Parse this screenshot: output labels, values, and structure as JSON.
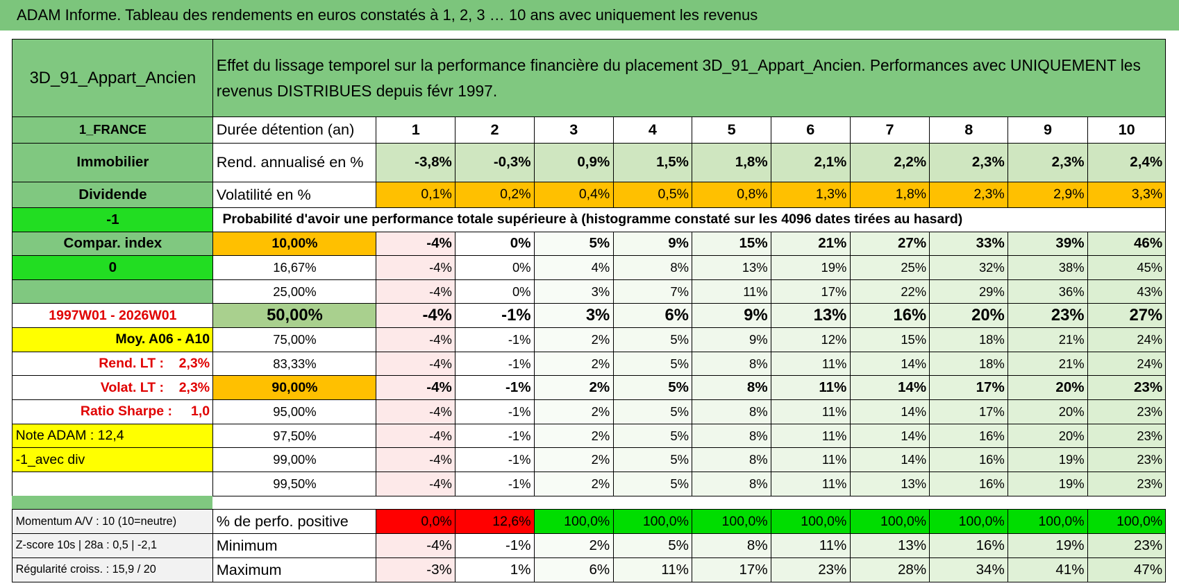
{
  "title": "ADAM Informe. Tableau des rendements en euros constatés à 1, 2, 3 … 10 ans avec uniquement les revenus",
  "header": {
    "name": "3D_91_Appart_Ancien",
    "description": "Effet du lissage temporel sur la performance financière du placement 3D_91_Appart_Ancien. Performances avec UNIQUEMENT les revenus DISTRIBUES depuis févr 1997."
  },
  "rows": [
    {
      "side": "1_FRANCE",
      "label": "Durée détention (an)",
      "values": [
        1,
        2,
        3,
        4,
        5,
        6,
        7,
        8,
        9,
        10
      ]
    },
    {
      "side": "Immobilier",
      "label": "Rend. annualisé en %",
      "values": [
        "-3,8%",
        "-0,3%",
        "0,9%",
        "1,5%",
        "1,8%",
        "2,1%",
        "2,2%",
        "2,3%",
        "2,3%",
        "2,4%"
      ]
    },
    {
      "side": "Dividende",
      "label": "Volatilité en %",
      "values": [
        "0,1%",
        "0,2%",
        "0,4%",
        "0,5%",
        "0,8%",
        "1,3%",
        "1,8%",
        "2,3%",
        "2,9%",
        "3,3%"
      ]
    },
    {
      "side": "-1",
      "label": "Probabilité d'avoir une performance totale supérieure à (histogramme constaté sur les 4096 dates tirées au hasard)"
    },
    {
      "side": "Compar. index",
      "label": "10,00%",
      "values": [
        "-4%",
        "0%",
        "5%",
        "9%",
        "15%",
        "21%",
        "27%",
        "33%",
        "39%",
        "46%"
      ]
    },
    {
      "side": "0",
      "label": "16,67%",
      "values": [
        "-4%",
        "0%",
        "4%",
        "8%",
        "13%",
        "19%",
        "25%",
        "32%",
        "38%",
        "45%"
      ]
    },
    {
      "label": "25,00%",
      "values": [
        "-4%",
        "0%",
        "3%",
        "7%",
        "11%",
        "17%",
        "22%",
        "29%",
        "36%",
        "43%"
      ]
    },
    {
      "side": "1997W01 - 2026W01",
      "label": "50,00%",
      "values": [
        "-4%",
        "-1%",
        "3%",
        "6%",
        "9%",
        "13%",
        "16%",
        "20%",
        "23%",
        "27%"
      ]
    },
    {
      "side": "Moy. A06 - A10",
      "label": "75,00%",
      "values": [
        "-4%",
        "-1%",
        "2%",
        "5%",
        "9%",
        "12%",
        "15%",
        "18%",
        "21%",
        "24%"
      ]
    },
    {
      "side": "Rend. LT :    2,3%",
      "label": "83,33%",
      "values": [
        "-4%",
        "-1%",
        "2%",
        "5%",
        "8%",
        "11%",
        "14%",
        "18%",
        "21%",
        "24%"
      ]
    },
    {
      "side": "Volat. LT :    2,3%",
      "label": "90,00%",
      "values": [
        "-4%",
        "-1%",
        "2%",
        "5%",
        "8%",
        "11%",
        "14%",
        "17%",
        "20%",
        "23%"
      ]
    },
    {
      "side": "Ratio Sharpe :     1,0",
      "label": "95,00%",
      "values": [
        "-4%",
        "-1%",
        "2%",
        "5%",
        "8%",
        "11%",
        "14%",
        "17%",
        "20%",
        "23%"
      ]
    },
    {
      "side": "Note ADAM : 12,4",
      "label": "97,50%",
      "values": [
        "-4%",
        "-1%",
        "2%",
        "5%",
        "8%",
        "11%",
        "14%",
        "16%",
        "20%",
        "23%"
      ]
    },
    {
      "side": "-1_avec div",
      "label": "99,00%",
      "values": [
        "-4%",
        "-1%",
        "2%",
        "5%",
        "8%",
        "11%",
        "14%",
        "16%",
        "19%",
        "23%"
      ]
    },
    {
      "label": "99,50%",
      "values": [
        "-4%",
        "-1%",
        "2%",
        "5%",
        "8%",
        "11%",
        "13%",
        "16%",
        "19%",
        "23%"
      ]
    },
    {
      "side": "Momentum A/V : 10 (10=neutre)",
      "label": "% de perfo. positive",
      "values": [
        "0,0%",
        "12,6%",
        "100,0%",
        "100,0%",
        "100,0%",
        "100,0%",
        "100,0%",
        "100,0%",
        "100,0%",
        "100,0%"
      ]
    },
    {
      "side": "Z-score 10s | 28a : 0,5 | -2,1",
      "label": "Minimum",
      "values": [
        "-4%",
        "-1%",
        "2%",
        "5%",
        "8%",
        "11%",
        "13%",
        "16%",
        "19%",
        "23%"
      ]
    },
    {
      "side": "Régularité croiss. : 15,9 / 20",
      "label": "Maximum",
      "values": [
        "-3%",
        "1%",
        "6%",
        "11%",
        "17%",
        "23%",
        "28%",
        "34%",
        "41%",
        "47%"
      ]
    }
  ]
}
